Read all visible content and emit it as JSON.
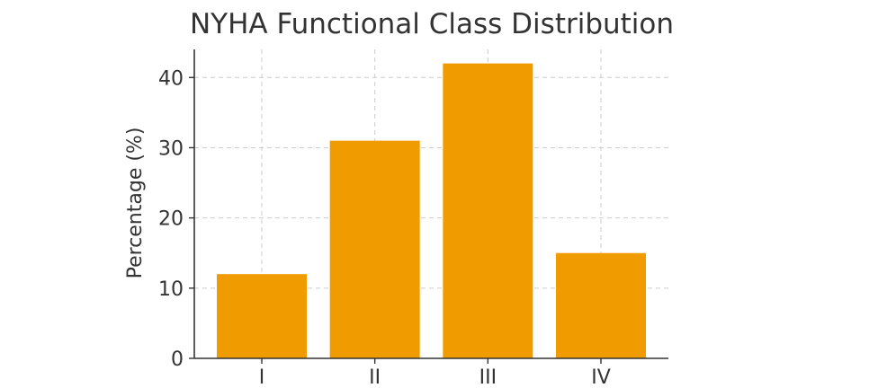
{
  "chart_data": {
    "type": "bar",
    "title": "NYHA Functional Class Distribution",
    "xlabel": "",
    "ylabel": "Percentage (%)",
    "categories": [
      "I",
      "II",
      "III",
      "IV"
    ],
    "values": [
      12,
      31,
      42,
      15
    ],
    "yticks": [
      0,
      10,
      20,
      30,
      40
    ],
    "ylim": [
      0,
      44
    ],
    "grid": true,
    "bar_color": "#f09c00"
  }
}
